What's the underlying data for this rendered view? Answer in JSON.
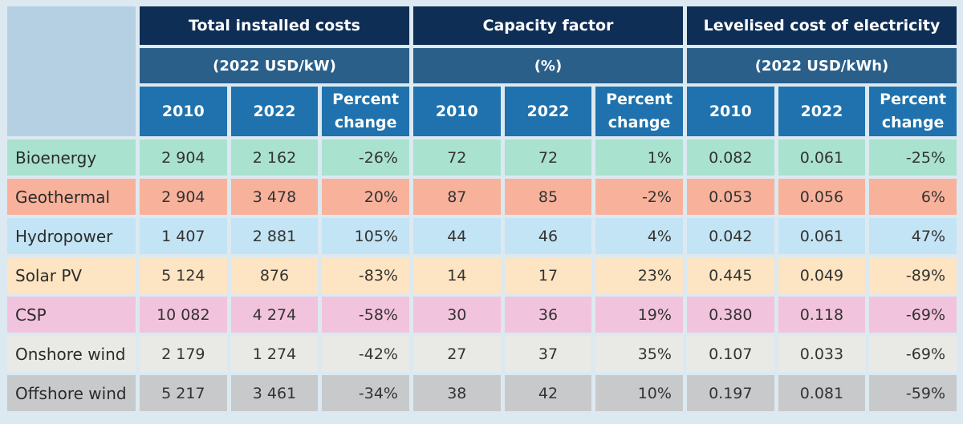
{
  "header": {
    "groups": [
      {
        "title": "Total installed costs",
        "unit": "(2022 USD/kW)"
      },
      {
        "title": "Capacity factor",
        "unit": "(%)"
      },
      {
        "title": "Levelised cost of electricity",
        "unit": "(2022 USD/kWh)"
      }
    ],
    "col_2010": "2010",
    "col_2022": "2022",
    "col_change": "Percent change"
  },
  "rows": [
    {
      "label": "Bioenergy",
      "color": "#a9e2cf",
      "tic": [
        "2 904",
        "2 162",
        "-26%"
      ],
      "cf": [
        "72",
        "72",
        "1%"
      ],
      "lcoe": [
        "0.082",
        "0.061",
        "-25%"
      ]
    },
    {
      "label": "Geothermal",
      "color": "#f8b29b",
      "tic": [
        "2 904",
        "3 478",
        "20%"
      ],
      "cf": [
        "87",
        "85",
        "-2%"
      ],
      "lcoe": [
        "0.053",
        "0.056",
        "6%"
      ]
    },
    {
      "label": "Hydropower",
      "color": "#c3e4f4",
      "tic": [
        "1 407",
        "2 881",
        "105%"
      ],
      "cf": [
        "44",
        "46",
        "4%"
      ],
      "lcoe": [
        "0.042",
        "0.061",
        "47%"
      ]
    },
    {
      "label": "Solar PV",
      "color": "#fde4c2",
      "tic": [
        "5 124",
        "876",
        "-83%"
      ],
      "cf": [
        "14",
        "17",
        "23%"
      ],
      "lcoe": [
        "0.445",
        "0.049",
        "-89%"
      ]
    },
    {
      "label": "CSP",
      "color": "#f2c3dc",
      "tic": [
        "10 082",
        "4 274",
        "-58%"
      ],
      "cf": [
        "30",
        "36",
        "19%"
      ],
      "lcoe": [
        "0.380",
        "0.118",
        "-69%"
      ]
    },
    {
      "label": "Onshore wind",
      "color": "#e9e9e6",
      "tic": [
        "2 179",
        "1 274",
        "-42%"
      ],
      "cf": [
        "27",
        "37",
        "35%"
      ],
      "lcoe": [
        "0.107",
        "0.033",
        "-69%"
      ]
    },
    {
      "label": "Offshore wind",
      "color": "#c8c9cb",
      "tic": [
        "5 217",
        "3 461",
        "-34%"
      ],
      "cf": [
        "38",
        "42",
        "10%"
      ],
      "lcoe": [
        "0.197",
        "0.081",
        "-59%"
      ]
    }
  ]
}
